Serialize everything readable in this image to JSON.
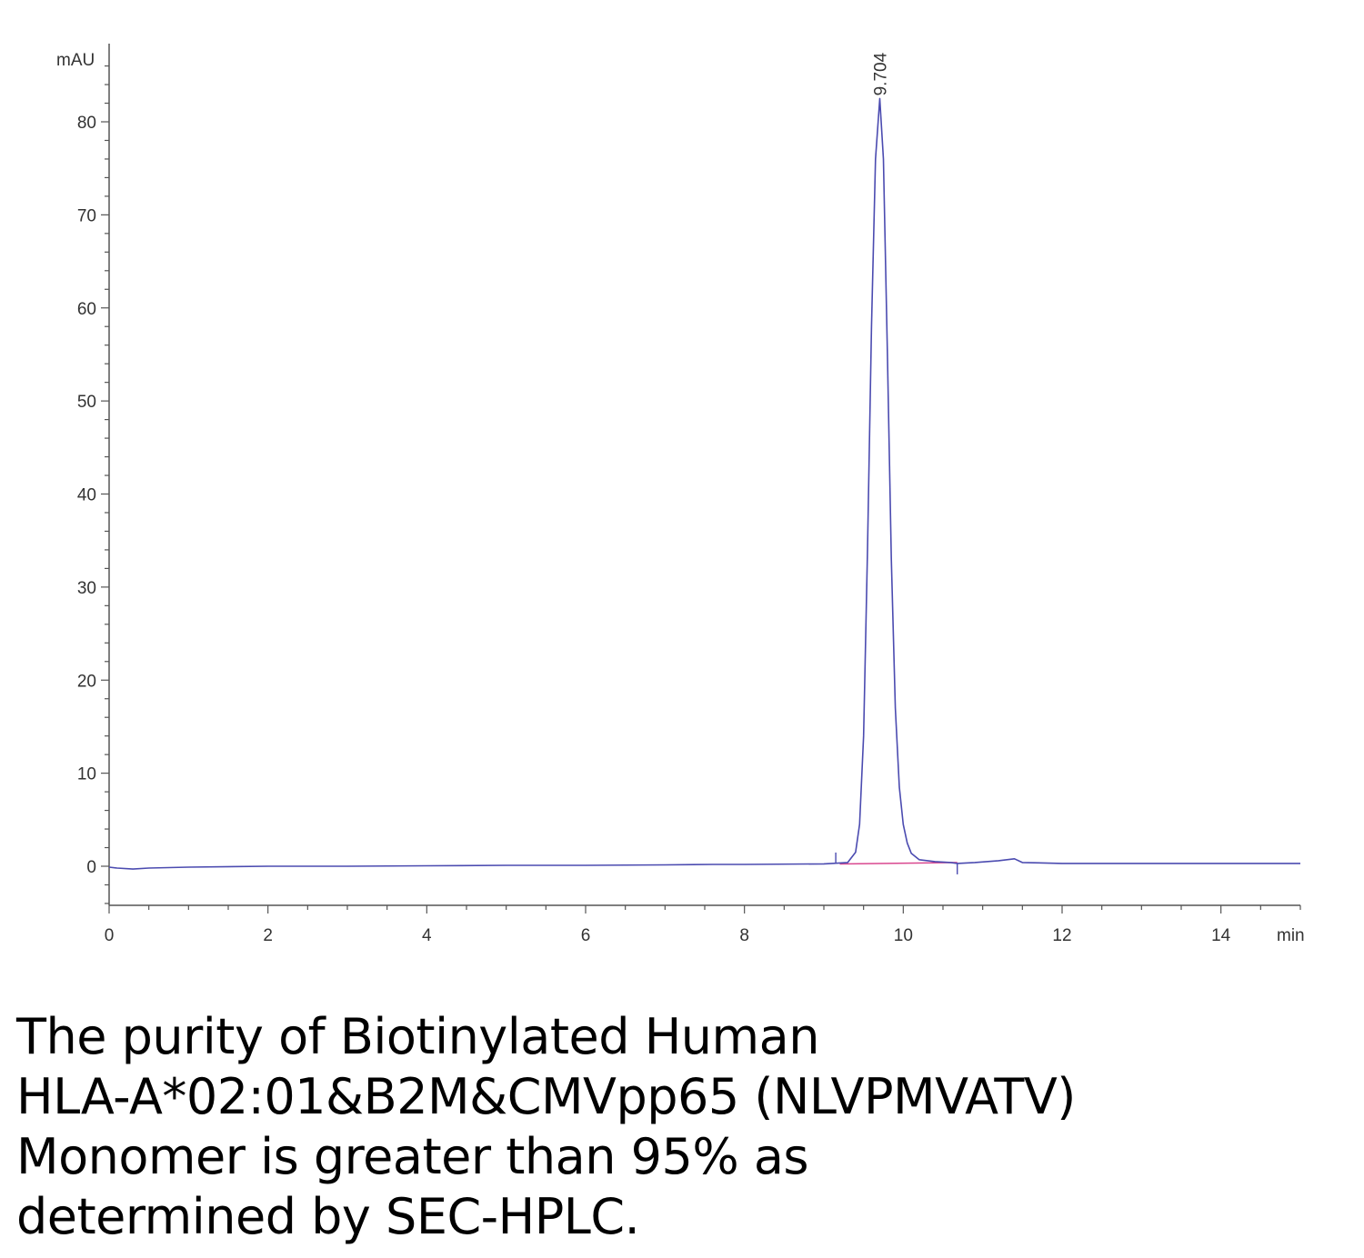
{
  "chart_data": {
    "type": "line",
    "title": "",
    "xlabel": "min",
    "ylabel": "mAU",
    "xlim": [
      0,
      15
    ],
    "ylim": [
      -5,
      87
    ],
    "x_ticks": [
      0,
      2,
      4,
      6,
      8,
      10,
      12,
      14
    ],
    "y_ticks": [
      0,
      10,
      20,
      30,
      40,
      50,
      60,
      70,
      80
    ],
    "grid": false,
    "legend": "none",
    "peaks": [
      {
        "retention_time": 9.704,
        "label": "9.704",
        "height": 82.5
      }
    ],
    "series": [
      {
        "color": "#4b4bb0",
        "x": [
          0,
          0.1,
          0.3,
          0.5,
          1.0,
          2.0,
          3.0,
          4.0,
          5.0,
          6.0,
          7.0,
          7.6,
          8.0,
          9.0,
          9.3,
          9.4,
          9.45,
          9.5,
          9.55,
          9.6,
          9.65,
          9.704,
          9.75,
          9.8,
          9.85,
          9.9,
          9.95,
          10.0,
          10.05,
          10.1,
          10.2,
          10.4,
          10.6,
          10.68,
          10.9,
          11.2,
          11.4,
          11.5,
          12.0,
          13.0,
          14.0,
          15.0
        ],
        "y": [
          -0.1,
          -0.2,
          -0.3,
          -0.2,
          -0.1,
          0.0,
          0.0,
          0.05,
          0.1,
          0.1,
          0.15,
          0.2,
          0.2,
          0.25,
          0.4,
          1.5,
          4.5,
          14.0,
          34.0,
          58.0,
          76.0,
          82.5,
          76.0,
          55.0,
          33.0,
          17.0,
          8.5,
          4.5,
          2.5,
          1.4,
          0.7,
          0.5,
          0.4,
          0.3,
          0.4,
          0.6,
          0.8,
          0.4,
          0.3,
          0.3,
          0.3,
          0.3
        ]
      }
    ],
    "baseline": {
      "color": "#d9478f",
      "x": [
        9.2,
        10.68
      ],
      "y": [
        0.25,
        0.4
      ]
    },
    "integration_marks": [
      9.15,
      10.68
    ]
  },
  "caption_lines": [
    "The purity of Biotinylated Human",
    "HLA-A*02:01&B2M&CMVpp65 (NLVPMVATV)",
    "Monomer is greater than 95% as",
    "determined by SEC-HPLC."
  ]
}
